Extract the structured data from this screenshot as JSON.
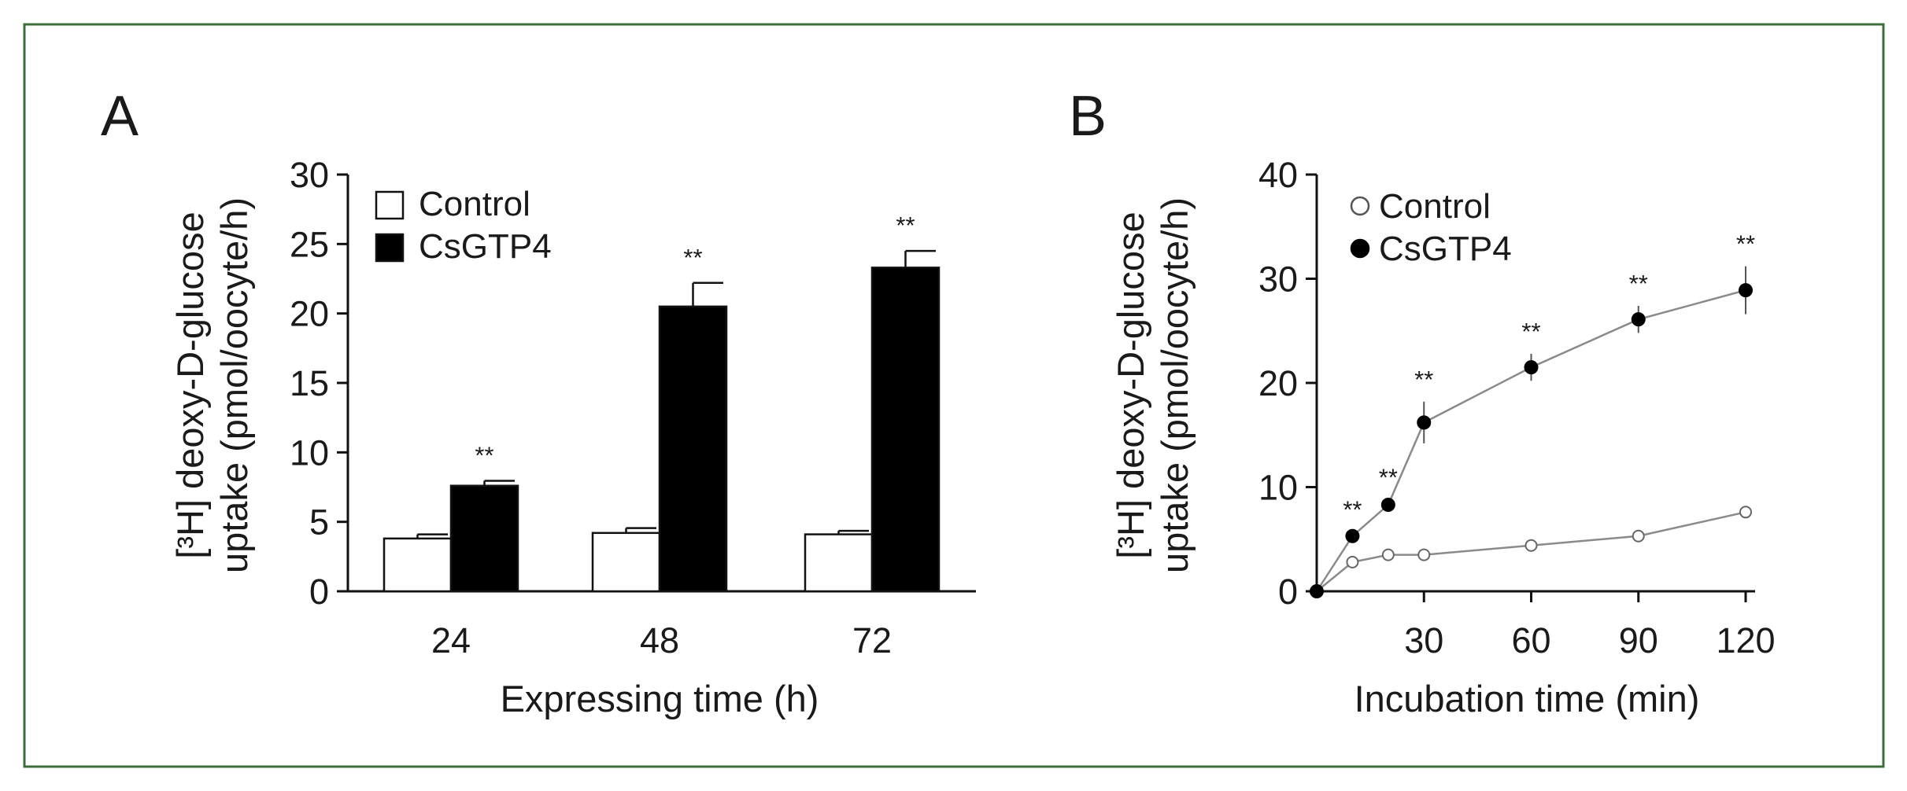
{
  "figure": {
    "frame_color": "#3b6e3b"
  },
  "chart_data": [
    {
      "panel": "A",
      "type": "bar",
      "categories": [
        "24",
        "48",
        "72"
      ],
      "series": [
        {
          "name": "Control",
          "values": [
            3.8,
            4.2,
            4.1
          ],
          "errors": [
            0.3,
            0.35,
            0.25
          ],
          "color": "#ffffff",
          "sig": [
            "",
            "",
            ""
          ]
        },
        {
          "name": "CsGTP4",
          "values": [
            7.6,
            20.5,
            23.3
          ],
          "errors": [
            0.35,
            1.7,
            1.2
          ],
          "color": "#000000",
          "sig": [
            "**",
            "**",
            "**"
          ]
        }
      ],
      "yticks": [
        "0",
        "5",
        "10",
        "15",
        "20",
        "25",
        "30"
      ],
      "ylim": [
        0,
        30
      ],
      "xlabel": "Expressing time (h)",
      "ylabel_line1": "[³H] deoxy-D-glucose",
      "ylabel_line2": "uptake (pmol/oocyte/h)",
      "legend_placement": "top-left",
      "grid": false
    },
    {
      "panel": "B",
      "type": "line",
      "xlim": [
        0,
        120
      ],
      "xticks": [
        "30",
        "60",
        "90",
        "120"
      ],
      "yticks": [
        "0",
        "10",
        "20",
        "30",
        "40"
      ],
      "ylim": [
        0,
        40
      ],
      "series": [
        {
          "name": "Control",
          "marker": "open-circle",
          "x": [
            0,
            10,
            20,
            30,
            60,
            90,
            120
          ],
          "y": [
            0,
            2.8,
            3.5,
            3.5,
            4.4,
            5.3,
            7.6
          ],
          "errors": [
            0,
            0.2,
            0.2,
            0.2,
            0.3,
            0.3,
            0.3
          ],
          "sig": [
            "",
            "",
            "",
            "",
            "",
            "",
            ""
          ]
        },
        {
          "name": "CsGTP4",
          "marker": "filled-circle",
          "x": [
            0,
            10,
            20,
            30,
            60,
            90,
            120
          ],
          "y": [
            0,
            5.3,
            8.3,
            16.2,
            21.5,
            26.1,
            28.9
          ],
          "errors": [
            0,
            0.4,
            0.5,
            2.0,
            1.3,
            1.3,
            2.3
          ],
          "sig": [
            "",
            "**",
            "**",
            "**",
            "**",
            "**",
            "**"
          ]
        }
      ],
      "xlabel": "Incubation time (min)",
      "ylabel_line1": "[³H] deoxy-D-glucose",
      "ylabel_line2": "uptake (pmol/oocyte/h)",
      "legend_placement": "top-left",
      "grid": false
    }
  ]
}
